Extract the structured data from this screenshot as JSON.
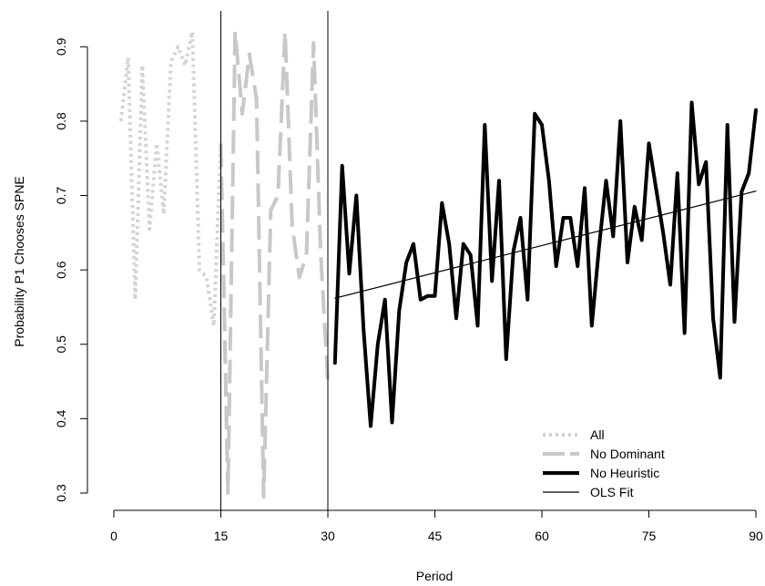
{
  "chart_data": {
    "type": "line",
    "title": "",
    "xlabel": "Period",
    "ylabel": "Probability P1 Chooses SPNE",
    "xlim": [
      0,
      90
    ],
    "ylim": [
      0.3,
      0.92
    ],
    "xticks": [
      0,
      15,
      30,
      45,
      60,
      75,
      90
    ],
    "yticks": [
      0.3,
      0.4,
      0.5,
      0.6,
      0.7,
      0.8,
      0.9
    ],
    "x_tick_labels": [
      "0",
      "15",
      "30",
      "45",
      "60",
      "75",
      "90"
    ],
    "y_tick_labels": [
      "0.3",
      "0.4",
      "0.5",
      "0.6",
      "0.7",
      "0.8",
      "0.9"
    ],
    "vlines": [
      15,
      30
    ],
    "grid": false,
    "legend_position": "bottom-right",
    "series": [
      {
        "name": "All",
        "color": "#d3d3d3",
        "style": "dotted",
        "x": [
          1,
          2,
          3,
          4,
          5,
          6,
          7,
          8,
          9,
          10,
          11,
          12,
          13,
          14,
          15
        ],
        "y": [
          0.8,
          0.885,
          0.56,
          0.875,
          0.655,
          0.77,
          0.675,
          0.88,
          0.9,
          0.875,
          0.92,
          0.6,
          0.59,
          0.525,
          0.77
        ]
      },
      {
        "name": "No Dominant",
        "color": "#c8c8c8",
        "style": "dashed",
        "x": [
          15,
          16,
          17,
          18,
          19,
          20,
          21,
          22,
          23,
          24,
          25,
          26,
          27,
          28,
          29,
          30
        ],
        "y": [
          0.77,
          0.3,
          0.92,
          0.81,
          0.89,
          0.83,
          0.295,
          0.68,
          0.7,
          0.92,
          0.66,
          0.59,
          0.62,
          0.905,
          0.62,
          0.45
        ]
      },
      {
        "name": "No Heuristic",
        "color": "#000000",
        "style": "solid",
        "x": [
          31,
          32,
          33,
          34,
          35,
          36,
          37,
          38,
          39,
          40,
          41,
          42,
          43,
          44,
          45,
          46,
          47,
          48,
          49,
          50,
          51,
          52,
          53,
          54,
          55,
          56,
          57,
          58,
          59,
          60,
          61,
          62,
          63,
          64,
          65,
          66,
          67,
          68,
          69,
          70,
          71,
          72,
          73,
          74,
          75,
          76,
          77,
          78,
          79,
          80,
          81,
          82,
          83,
          84,
          85,
          86,
          87,
          88,
          89,
          90
        ],
        "y": [
          0.475,
          0.74,
          0.595,
          0.7,
          0.52,
          0.39,
          0.5,
          0.56,
          0.395,
          0.545,
          0.61,
          0.635,
          0.56,
          0.565,
          0.565,
          0.69,
          0.635,
          0.535,
          0.635,
          0.62,
          0.525,
          0.795,
          0.585,
          0.72,
          0.48,
          0.625,
          0.67,
          0.56,
          0.81,
          0.795,
          0.72,
          0.605,
          0.67,
          0.67,
          0.605,
          0.71,
          0.525,
          0.63,
          0.72,
          0.645,
          0.8,
          0.61,
          0.685,
          0.64,
          0.77,
          0.71,
          0.65,
          0.58,
          0.73,
          0.515,
          0.825,
          0.715,
          0.745,
          0.535,
          0.455,
          0.795,
          0.53,
          0.705,
          0.73,
          0.815
        ]
      },
      {
        "name": "OLS Fit",
        "color": "#000000",
        "style": "thin",
        "x": [
          31,
          90
        ],
        "y": [
          0.562,
          0.706
        ]
      }
    ]
  }
}
